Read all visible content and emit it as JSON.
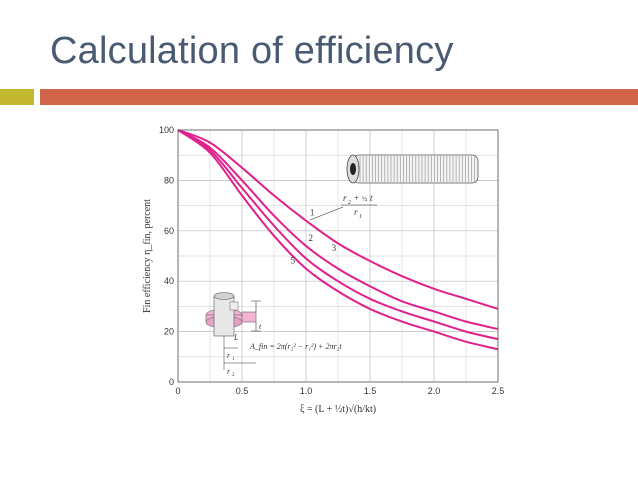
{
  "slide": {
    "title": "Calculation of efficiency",
    "colors": {
      "title": "#4a5a72",
      "accent_square": "#c4b830",
      "accent_bar": "#d0654b",
      "curve": "#e0208c"
    }
  },
  "chart_data": {
    "type": "line",
    "title": "",
    "ylabel": "Fin efficiency η_fin, percent",
    "xlabel": "ξ = (L + ½t)√(h/kt)",
    "xlim": [
      0,
      2.5
    ],
    "ylim": [
      0,
      100
    ],
    "grid": true,
    "x_ticks": [
      "0",
      "0.5",
      "1.0",
      "1.5",
      "2.0",
      "2.5"
    ],
    "y_ticks": [
      "0",
      "20",
      "40",
      "60",
      "80",
      "100"
    ],
    "series": [
      {
        "name": "1",
        "x": [
          0,
          0.25,
          0.5,
          0.75,
          1.0,
          1.25,
          1.5,
          1.75,
          2.0,
          2.25,
          2.5
        ],
        "values": [
          100,
          95,
          85,
          74,
          64,
          55,
          48,
          42,
          37,
          33,
          29
        ]
      },
      {
        "name": "2",
        "x": [
          0,
          0.25,
          0.5,
          0.75,
          1.0,
          1.25,
          1.5,
          1.75,
          2.0,
          2.25,
          2.5
        ],
        "values": [
          100,
          93,
          80,
          66,
          54,
          45,
          38,
          32,
          28,
          24,
          21
        ]
      },
      {
        "name": "3",
        "x": [
          0,
          0.25,
          0.5,
          0.75,
          1.0,
          1.25,
          1.5,
          1.75,
          2.0,
          2.25,
          2.5
        ],
        "values": [
          100,
          92,
          77,
          62,
          49,
          40,
          33,
          28,
          24,
          20,
          17
        ]
      },
      {
        "name": "5",
        "x": [
          0,
          0.25,
          0.5,
          0.75,
          1.0,
          1.25,
          1.5,
          1.75,
          2.0,
          2.25,
          2.5
        ],
        "values": [
          100,
          91,
          74,
          58,
          45,
          36,
          29,
          24,
          20,
          16,
          13
        ]
      }
    ],
    "annotations": {
      "ratio_top": "r",
      "ratio_top_sub": "2",
      "ratio_top_plus": "+",
      "ratio_half": "½",
      "ratio_t": "t",
      "ratio_bottom": "r",
      "ratio_bottom_sub": "1",
      "fin_t": "t",
      "fin_L": "L",
      "fin_r1": "r",
      "fin_r1_sub": "1",
      "fin_r2": "r",
      "fin_r2_sub": "2",
      "area_formula": "A_fin = 2π(r₂² − r₁²) + 2πr₂t"
    }
  }
}
